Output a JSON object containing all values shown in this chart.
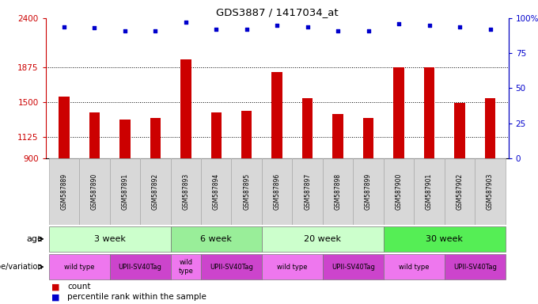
{
  "title": "GDS3887 / 1417034_at",
  "samples": [
    "GSM587889",
    "GSM587890",
    "GSM587891",
    "GSM587892",
    "GSM587893",
    "GSM587894",
    "GSM587895",
    "GSM587896",
    "GSM587897",
    "GSM587898",
    "GSM587899",
    "GSM587900",
    "GSM587901",
    "GSM587902",
    "GSM587903"
  ],
  "counts": [
    1560,
    1390,
    1310,
    1330,
    1960,
    1390,
    1410,
    1820,
    1540,
    1370,
    1330,
    1870,
    1870,
    1490,
    1540
  ],
  "percentiles": [
    94,
    93,
    91,
    91,
    97,
    92,
    92,
    95,
    94,
    91,
    91,
    96,
    95,
    94,
    92
  ],
  "ylim_left": [
    900,
    2400
  ],
  "ylim_right": [
    0,
    100
  ],
  "yticks_left": [
    900,
    1125,
    1500,
    1875,
    2400
  ],
  "yticks_right": [
    0,
    25,
    50,
    75,
    100
  ],
  "bar_color": "#cc0000",
  "dot_color": "#0000cc",
  "age_groups": [
    {
      "label": "3 week",
      "start": 0,
      "end": 4,
      "color": "#ccffcc"
    },
    {
      "label": "6 week",
      "start": 4,
      "end": 7,
      "color": "#99ee99"
    },
    {
      "label": "20 week",
      "start": 7,
      "end": 11,
      "color": "#ccffcc"
    },
    {
      "label": "30 week",
      "start": 11,
      "end": 15,
      "color": "#55ee55"
    }
  ],
  "genotype_groups": [
    {
      "label": "wild type",
      "start": 0,
      "end": 2,
      "color": "#ee77ee"
    },
    {
      "label": "UPII-SV40Tag",
      "start": 2,
      "end": 4,
      "color": "#cc44cc"
    },
    {
      "label": "wild\ntype",
      "start": 4,
      "end": 5,
      "color": "#ee77ee"
    },
    {
      "label": "UPII-SV40Tag",
      "start": 5,
      "end": 7,
      "color": "#cc44cc"
    },
    {
      "label": "wild type",
      "start": 7,
      "end": 9,
      "color": "#ee77ee"
    },
    {
      "label": "UPII-SV40Tag",
      "start": 9,
      "end": 11,
      "color": "#cc44cc"
    },
    {
      "label": "wild type",
      "start": 11,
      "end": 13,
      "color": "#ee77ee"
    },
    {
      "label": "UPII-SV40Tag",
      "start": 13,
      "end": 15,
      "color": "#cc44cc"
    }
  ],
  "label_row1": "age",
  "label_row2": "genotype/variation",
  "legend_count": "count",
  "legend_percentile": "percentile rank within the sample",
  "bg_color": "#ffffff",
  "sample_bg": "#d8d8d8",
  "bar_width": 0.35
}
